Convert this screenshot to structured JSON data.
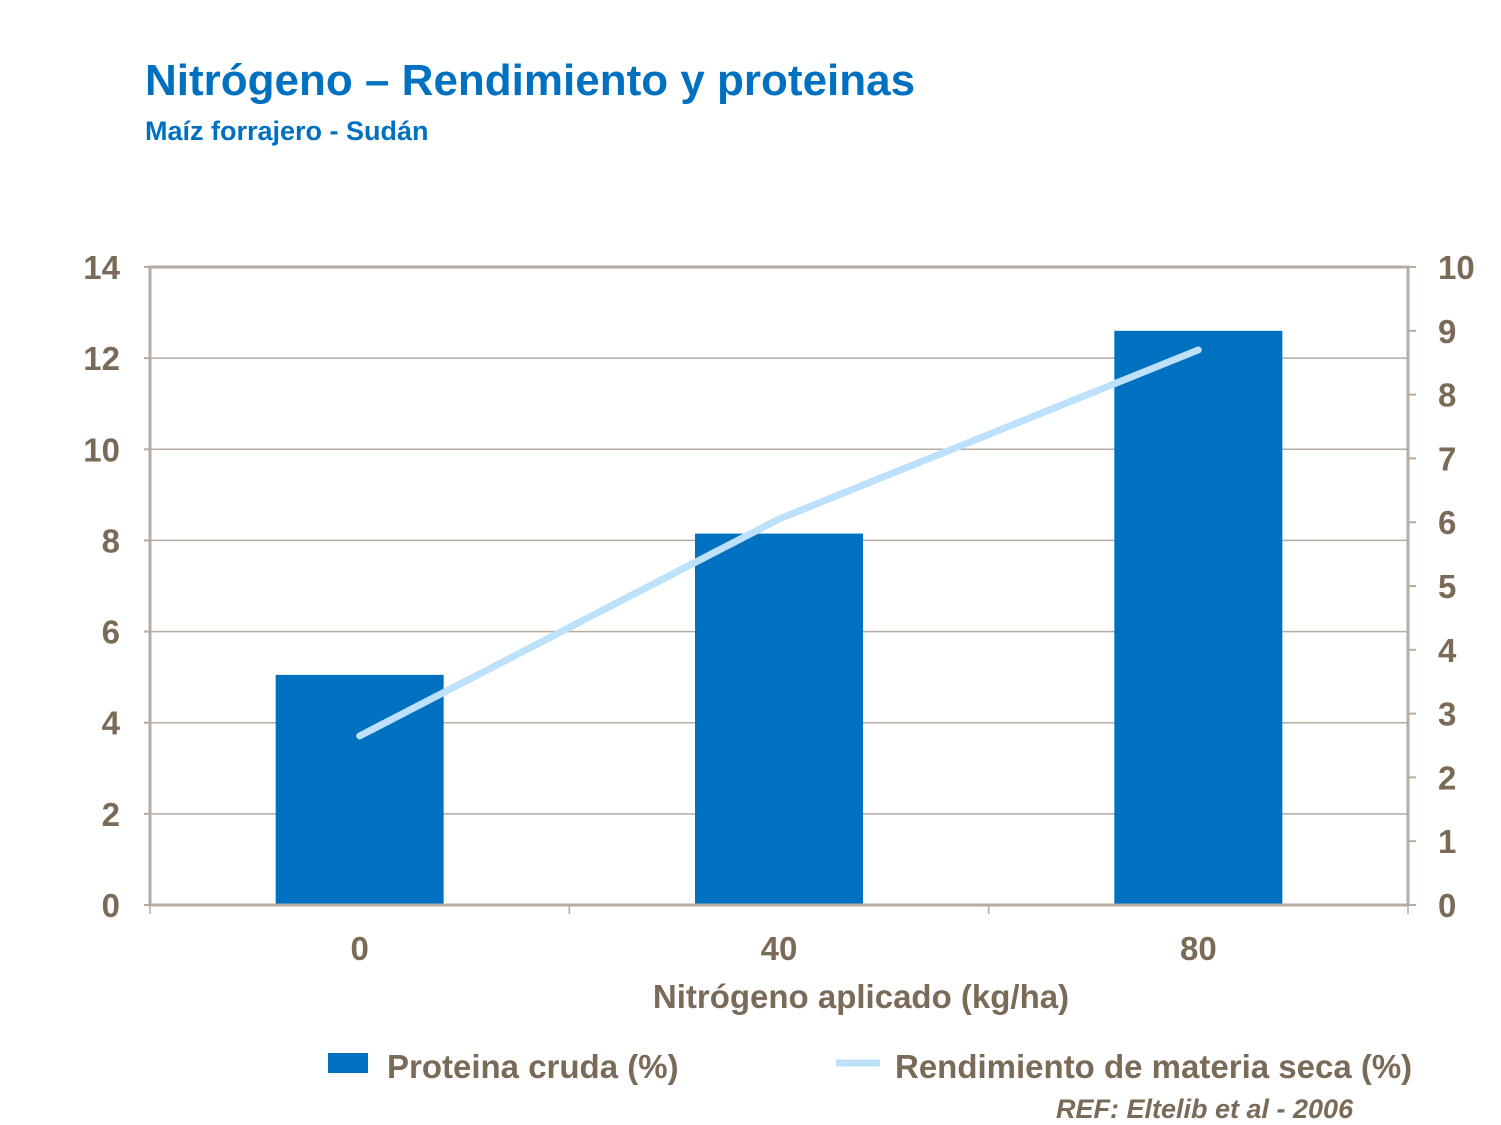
{
  "title": "Nitrógeno – Rendimiento y proteinas",
  "subtitle": "Maíz forrajero - Sudán",
  "reference": "REF:  Eltelib et al - 2006",
  "chart_data": {
    "type": "bar+line",
    "categories": [
      "0",
      "40",
      "80"
    ],
    "xlabel": "Nitrógeno aplicado (kg/ha)",
    "y_left": {
      "range": [
        0,
        14
      ],
      "ticks": [
        "0",
        "2",
        "4",
        "6",
        "8",
        "10",
        "12",
        "14"
      ]
    },
    "y_right": {
      "range": [
        0,
        10
      ],
      "ticks": [
        "0",
        "1",
        "2",
        "3",
        "4",
        "5",
        "6",
        "7",
        "8",
        "9",
        "10"
      ]
    },
    "grid": true,
    "legend_position": "bottom",
    "series": [
      {
        "name": "Proteina cruda (%)",
        "type": "bar",
        "axis": "left",
        "color": "#0070C0",
        "values": [
          5.05,
          8.15,
          12.6
        ]
      },
      {
        "name": "Rendimiento de materia seca (%)",
        "type": "line",
        "axis": "right",
        "color": "#BDE0FB",
        "values": [
          2.65,
          6.05,
          8.7
        ]
      }
    ]
  }
}
